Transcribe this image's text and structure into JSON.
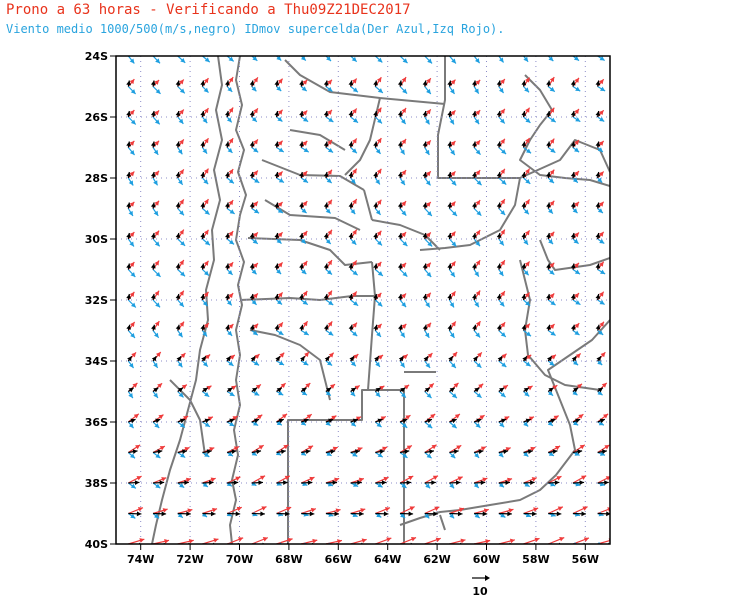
{
  "header": {
    "title": "Prono a 63 horas - Verificando a Thu09Z21DEC2017",
    "subtitle": "Viento medio 1000/500(m/s,negro) IDmov supercelda(Der Azul,Izq Rojo)."
  },
  "map": {
    "lon_range": [
      -75,
      -55
    ],
    "lat_range": [
      -40,
      -24
    ],
    "y_ticks": [
      "24S",
      "26S",
      "28S",
      "30S",
      "32S",
      "34S",
      "36S",
      "38S",
      "40S"
    ],
    "x_ticks": [
      "74W",
      "72W",
      "70W",
      "68W",
      "66W",
      "64W",
      "62W",
      "60W",
      "58W",
      "56W"
    ],
    "grid": "dotted",
    "colors": {
      "mean_wind": "#000000",
      "right_mover": "#1e9fe0",
      "left_mover": "#ef3b3b",
      "boundaries": "#7a7a7a",
      "grid": "#8c8cc8"
    }
  },
  "legend": {
    "reference_vector": "10"
  }
}
